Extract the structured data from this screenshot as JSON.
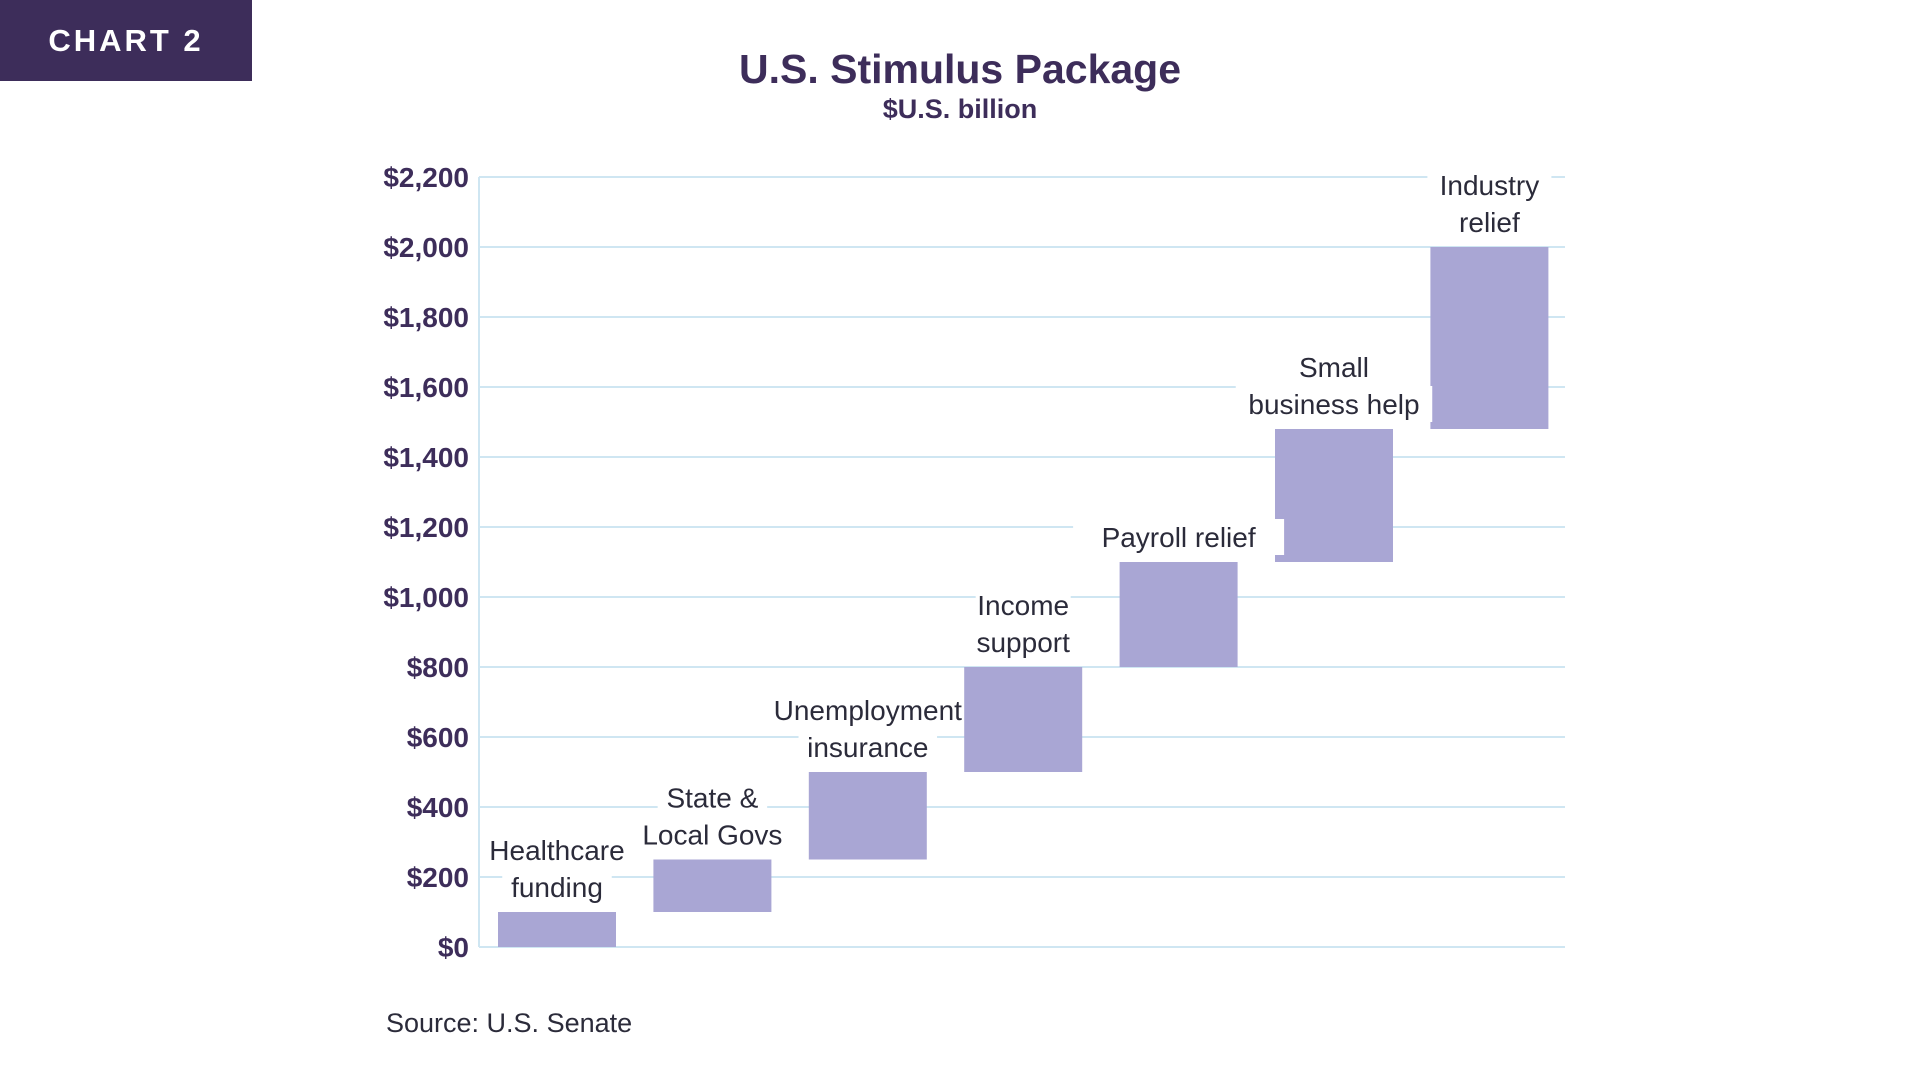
{
  "badge": {
    "label": "CHART 2"
  },
  "colors": {
    "accent": "#3d2d5a",
    "bar": "#a9a6d4",
    "grid": "#cfe6f2",
    "text": "#2b2b3a",
    "label_bg": "#ffffff"
  },
  "chart_data": {
    "type": "bar",
    "subtype": "waterfall",
    "title": "U.S. Stimulus Package",
    "subtitle": "$U.S. billion",
    "categories": [
      [
        "Healthcare",
        "funding"
      ],
      [
        "State &",
        "Local Govs"
      ],
      [
        "Unemployment",
        "insurance"
      ],
      [
        "Income",
        "support"
      ],
      [
        "Payroll relief"
      ],
      [
        "Small",
        "business help"
      ],
      [
        "Industry",
        "relief"
      ]
    ],
    "bars": [
      {
        "start": 0,
        "end": 100
      },
      {
        "start": 100,
        "end": 250
      },
      {
        "start": 250,
        "end": 500
      },
      {
        "start": 500,
        "end": 800
      },
      {
        "start": 800,
        "end": 1100
      },
      {
        "start": 1100,
        "end": 1480
      },
      {
        "start": 1480,
        "end": 2000
      }
    ],
    "ylim": [
      0,
      2200
    ],
    "yticks": [
      0,
      200,
      400,
      600,
      800,
      1000,
      1200,
      1400,
      1600,
      1800,
      2000,
      2200
    ],
    "ytick_labels": [
      "$0",
      "$200",
      "$400",
      "$600",
      "$800",
      "$1,000",
      "$1,200",
      "$1,400",
      "$1,600",
      "$1,800",
      "$2,000",
      "$2,200"
    ],
    "grid": true,
    "legend": "none",
    "source": "Source: U.S. Senate"
  }
}
